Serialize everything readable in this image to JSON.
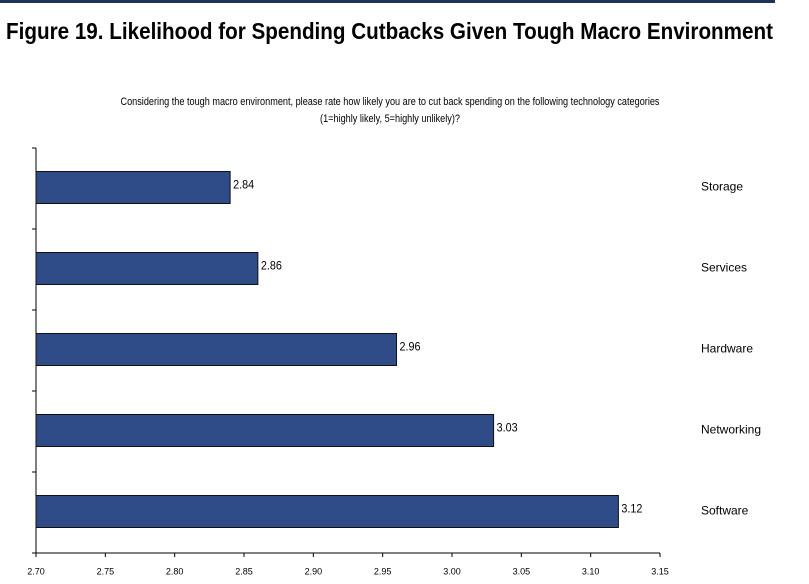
{
  "chart_data": {
    "type": "bar",
    "orientation": "horizontal",
    "title": "Figure 19. Likelihood for Spending Cutbacks Given Tough Macro Environment",
    "subtitle": "Considering the tough macro environment, please rate how likely you are to cut back spending on the following technology categories (1=highly likely, 5=highly unlikely)?",
    "categories": [
      "Storage",
      "Services",
      "Hardware",
      "Networking",
      "Software"
    ],
    "values": [
      2.84,
      2.86,
      2.96,
      3.03,
      3.12
    ],
    "color": "#2f4b88",
    "xlim": [
      2.7,
      3.15
    ],
    "xticks": [
      {
        "value": 2.7,
        "label": "2.70"
      },
      2.75,
      {
        "value": 2.8,
        "label": "2.80"
      },
      2.85,
      {
        "value": 2.9,
        "label": "2.90"
      },
      2.95,
      {
        "value": 3.0,
        "label": "3.00"
      },
      3.05,
      {
        "value": 3.1,
        "label": "3.10"
      },
      3.15
    ],
    "grid": false
  }
}
